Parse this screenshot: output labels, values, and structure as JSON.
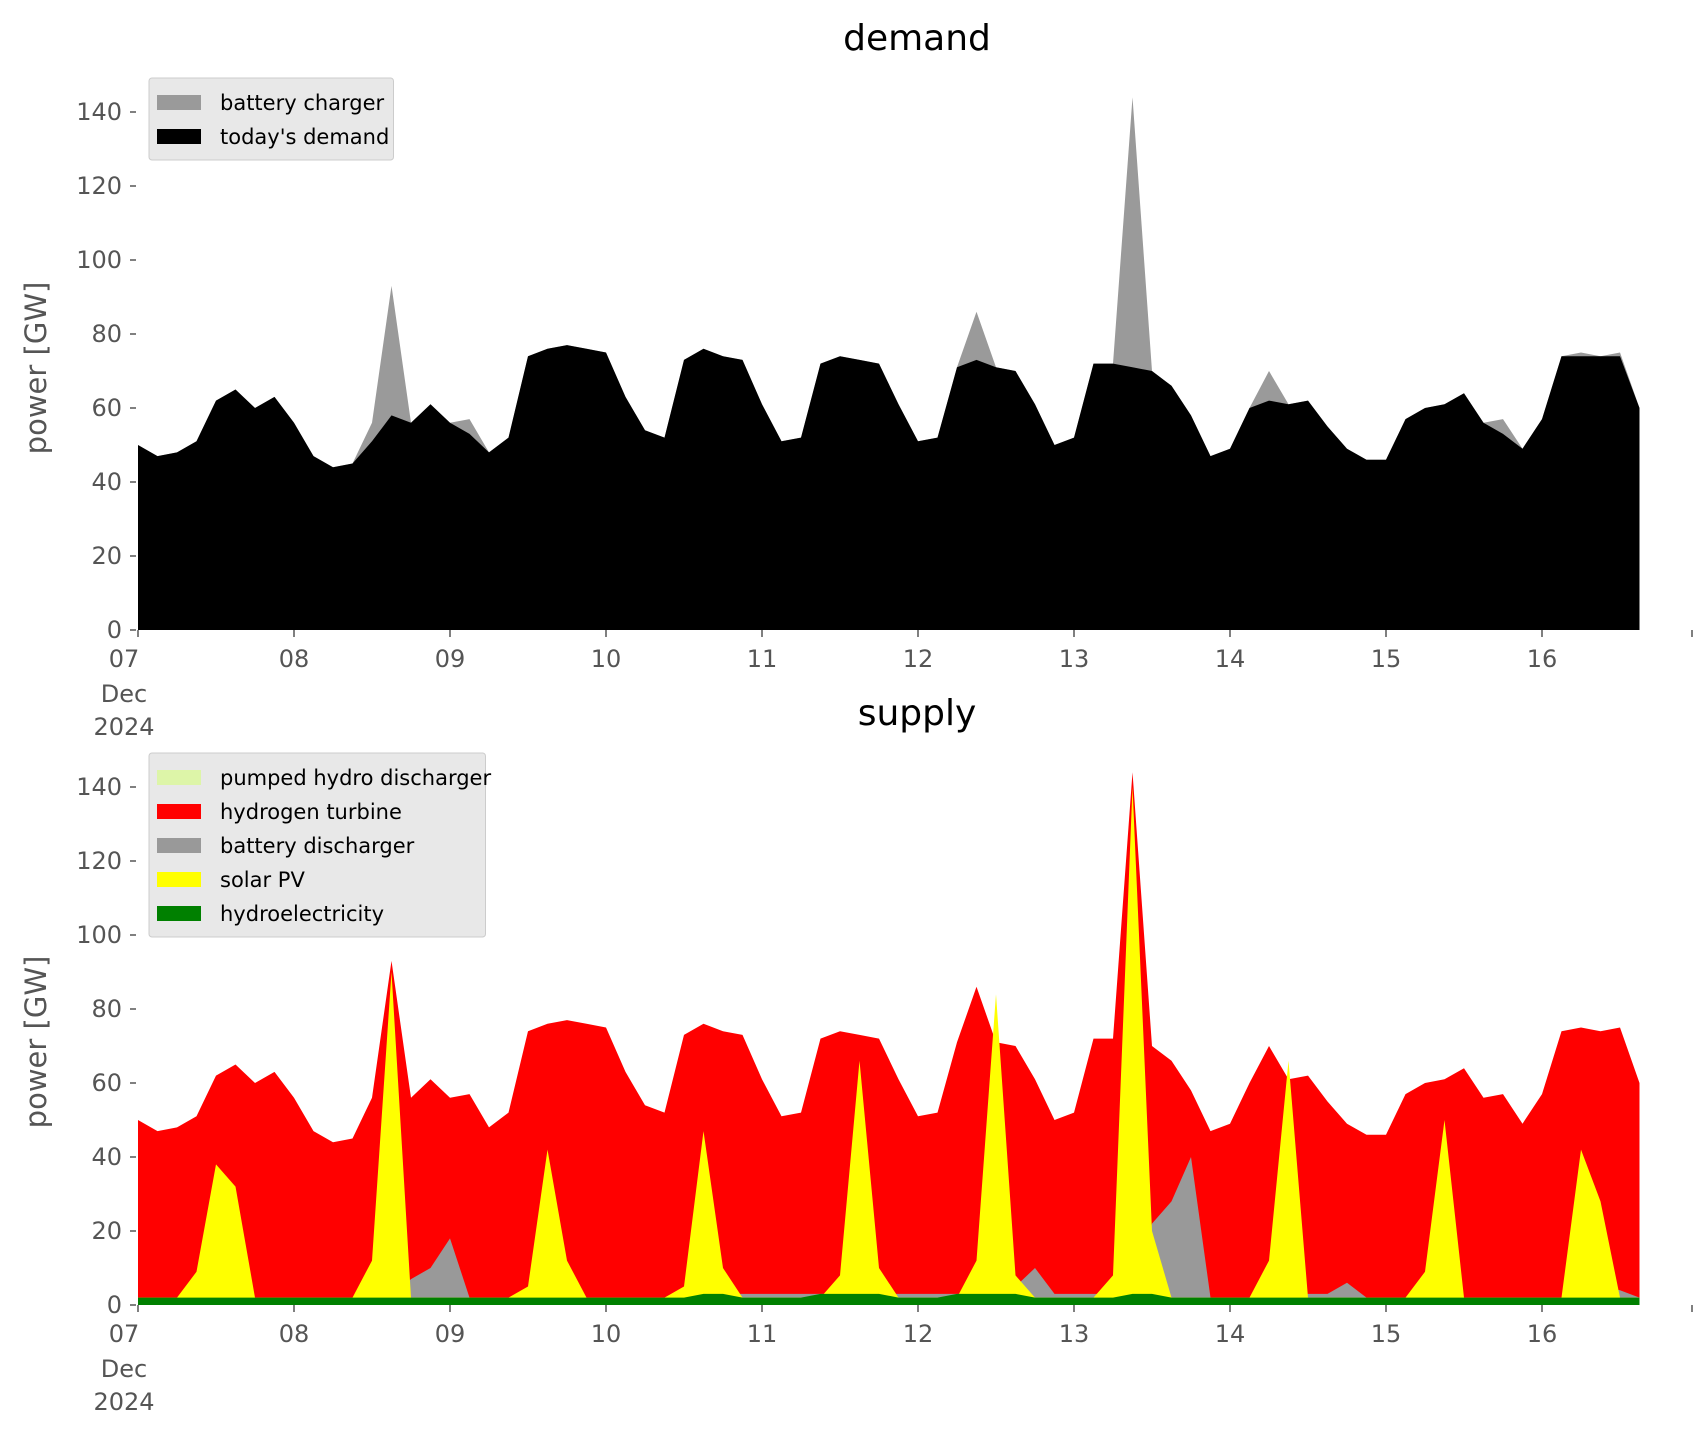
{
  "chart_data": [
    {
      "type": "area",
      "title": "demand",
      "xlabel": "",
      "ylabel": "power [GW]",
      "ylim": [
        0,
        150
      ],
      "yticks": [
        0,
        20,
        40,
        60,
        80,
        100,
        120,
        140
      ],
      "x_tick_labels": [
        "07",
        "08",
        "09",
        "10",
        "11",
        "12",
        "13",
        "14",
        "15",
        "16"
      ],
      "x_tick_sublabels": [
        "Dec",
        "2024"
      ],
      "legend_position": "upper-left",
      "grid": false,
      "x_start": "2024-12-07 00:00",
      "x_end": "2024-12-16 23:00",
      "x_step_hours": 3,
      "series": [
        {
          "name": "battery charger",
          "color": "#9a9a9a",
          "stack": "top",
          "values": [
            50,
            47,
            48,
            51,
            62,
            65,
            60,
            63,
            56,
            47,
            44,
            45,
            56,
            93,
            56,
            61,
            56,
            57,
            48,
            52,
            74,
            76,
            77,
            76,
            75,
            63,
            54,
            52,
            73,
            76,
            74,
            73,
            61,
            51,
            52,
            72,
            74,
            73,
            72,
            61,
            51,
            52,
            71,
            86,
            71,
            70,
            61,
            50,
            52,
            72,
            72,
            144,
            70,
            66,
            58,
            47,
            49,
            60,
            70,
            61,
            62,
            55,
            49,
            46,
            46,
            57,
            60,
            61,
            64,
            56,
            57,
            49,
            57,
            74,
            75,
            74,
            75,
            60
          ]
        },
        {
          "name": "today's demand",
          "color": "#000000",
          "stack": "base",
          "values": [
            50,
            47,
            48,
            51,
            62,
            65,
            60,
            63,
            56,
            47,
            44,
            45,
            51,
            58,
            56,
            61,
            56,
            53,
            48,
            52,
            74,
            76,
            77,
            76,
            75,
            63,
            54,
            52,
            73,
            76,
            74,
            73,
            61,
            51,
            52,
            72,
            74,
            73,
            72,
            61,
            51,
            52,
            71,
            73,
            71,
            70,
            61,
            50,
            52,
            72,
            72,
            71,
            70,
            66,
            58,
            47,
            49,
            60,
            62,
            61,
            62,
            55,
            49,
            46,
            46,
            57,
            60,
            61,
            64,
            56,
            53,
            49,
            57,
            74,
            74,
            74,
            74,
            60
          ]
        }
      ]
    },
    {
      "type": "area",
      "title": "supply",
      "xlabel": "",
      "ylabel": "power [GW]",
      "ylim": [
        0,
        150
      ],
      "yticks": [
        0,
        20,
        40,
        60,
        80,
        100,
        120,
        140
      ],
      "x_tick_labels": [
        "07",
        "08",
        "09",
        "10",
        "11",
        "12",
        "13",
        "14",
        "15",
        "16"
      ],
      "x_tick_sublabels": [
        "Dec",
        "2024"
      ],
      "legend_position": "upper-left",
      "grid": false,
      "x_start": "2024-12-07 00:00",
      "x_end": "2024-12-16 23:00",
      "x_step_hours": 3,
      "series": [
        {
          "name": "pumped hydro discharger",
          "color": "#ddf5a8",
          "stack": "top"
        },
        {
          "name": "hydrogen turbine",
          "color": "#ff0000",
          "stack": "total",
          "values": [
            50,
            47,
            48,
            51,
            62,
            65,
            60,
            63,
            56,
            47,
            44,
            45,
            56,
            93,
            56,
            61,
            56,
            57,
            48,
            52,
            74,
            76,
            77,
            76,
            75,
            63,
            54,
            52,
            73,
            76,
            74,
            73,
            61,
            51,
            52,
            72,
            74,
            73,
            72,
            61,
            51,
            52,
            71,
            86,
            71,
            70,
            61,
            50,
            52,
            72,
            72,
            144,
            70,
            66,
            58,
            47,
            49,
            60,
            70,
            61,
            62,
            55,
            49,
            46,
            46,
            57,
            60,
            61,
            64,
            56,
            57,
            49,
            57,
            74,
            75,
            74,
            75,
            60
          ]
        },
        {
          "name": "battery discharger",
          "color": "#999999",
          "stack": "middle",
          "values": [
            2,
            2,
            2,
            2,
            2,
            2,
            2,
            2,
            2,
            2,
            2,
            2,
            2,
            2,
            7,
            10,
            18,
            2,
            2,
            2,
            2,
            6,
            6,
            2,
            2,
            2,
            2,
            2,
            2,
            5,
            3,
            3,
            3,
            3,
            3,
            3,
            3,
            3,
            3,
            3,
            3,
            3,
            3,
            3,
            6,
            5,
            10,
            3,
            3,
            3,
            3,
            3,
            22,
            28,
            40,
            2,
            2,
            2,
            2,
            3,
            3,
            3,
            6,
            2,
            2,
            2,
            2,
            2,
            2,
            2,
            2,
            2,
            2,
            2,
            2,
            5,
            4,
            2
          ]
        },
        {
          "name": "solar PV",
          "color": "#ffff00",
          "stack": "middle",
          "values": [
            2,
            2,
            2,
            9,
            38,
            32,
            2,
            2,
            2,
            2,
            2,
            2,
            12,
            90,
            2,
            2,
            2,
            2,
            2,
            2,
            5,
            42,
            12,
            2,
            2,
            2,
            2,
            2,
            5,
            47,
            10,
            2,
            2,
            2,
            2,
            2,
            8,
            66,
            10,
            2,
            2,
            2,
            2,
            12,
            84,
            8,
            2,
            2,
            2,
            2,
            8,
            140,
            20,
            2,
            2,
            2,
            2,
            2,
            12,
            66,
            2,
            2,
            2,
            2,
            2,
            2,
            9,
            50,
            2,
            2,
            2,
            2,
            2,
            2,
            42,
            28,
            2,
            2
          ]
        },
        {
          "name": "hydroelectricity",
          "color": "#008000",
          "stack": "base",
          "values": [
            2,
            2,
            2,
            2,
            2,
            2,
            2,
            2,
            2,
            2,
            2,
            2,
            2,
            2,
            2,
            2,
            2,
            2,
            2,
            2,
            2,
            2,
            2,
            2,
            2,
            2,
            2,
            2,
            2,
            3,
            3,
            2,
            2,
            2,
            2,
            3,
            3,
            3,
            3,
            2,
            2,
            2,
            3,
            3,
            3,
            3,
            2,
            2,
            2,
            2,
            2,
            3,
            3,
            2,
            2,
            2,
            2,
            2,
            2,
            2,
            2,
            2,
            2,
            2,
            2,
            2,
            2,
            2,
            2,
            2,
            2,
            2,
            2,
            2,
            2,
            2,
            2,
            2
          ]
        }
      ]
    }
  ]
}
